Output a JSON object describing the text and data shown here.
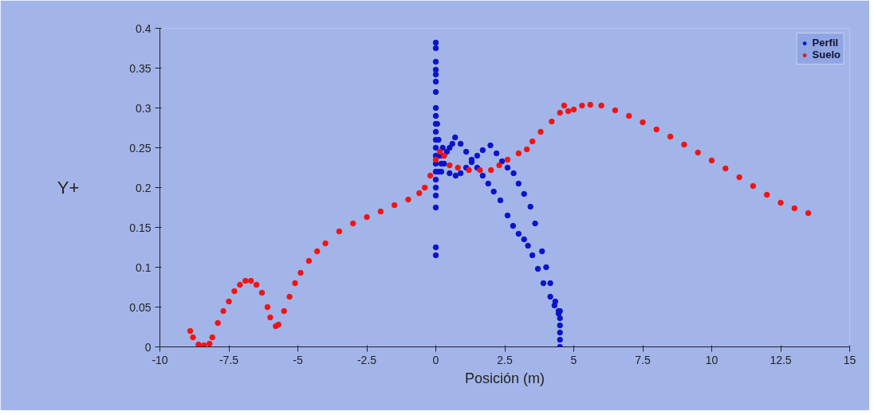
{
  "chart_data": {
    "type": "scatter",
    "xlabel": "Posición (m)",
    "ylabel": "Y+",
    "xlim": [
      -10,
      15
    ],
    "xticks": [
      -10,
      -7.5,
      -5,
      -2.5,
      0,
      2.5,
      5,
      7.5,
      10,
      12.5,
      15
    ],
    "ylim": [
      0,
      0.4
    ],
    "yticks": [
      0,
      0.05,
      0.1,
      0.15,
      0.2,
      0.25,
      0.3,
      0.35,
      0.4
    ],
    "grid": false,
    "legend": "top right",
    "marker": "circle",
    "series": [
      {
        "name": "Perfil",
        "color": "#0a14c8",
        "x": [
          0,
          0,
          0,
          0,
          0,
          0,
          0,
          0,
          0,
          0,
          0,
          0,
          0,
          0,
          0,
          0,
          0,
          0,
          0,
          0,
          0,
          0,
          0.05,
          0.1,
          0.15,
          0.2,
          0.25,
          0.3,
          0.1,
          0.2,
          0.3,
          0.4,
          0.5,
          0.6,
          0.7,
          0.9,
          1.1,
          1.3,
          1.5,
          1.7,
          1.9,
          2.1,
          2.34,
          2.6,
          2.8,
          3.0,
          3.2,
          3.34,
          3.5,
          3.7,
          3.9,
          4.15,
          4.3,
          4.45,
          0.5,
          0.72,
          0.9,
          1.1,
          1.3,
          1.5,
          1.7,
          1.98,
          2.2,
          2.4,
          2.6,
          2.82,
          3.0,
          3.2,
          3.43,
          3.6,
          3.85,
          4.0,
          4.15,
          4.33,
          4.45,
          4.5,
          4.5,
          4.5,
          4.5,
          4.5,
          4.5
        ],
        "values": [
          0.382,
          0.375,
          0.358,
          0.348,
          0.342,
          0.333,
          0.32,
          0.3,
          0.29,
          0.28,
          0.27,
          0.26,
          0.25,
          0.24,
          0.23,
          0.22,
          0.21,
          0.2,
          0.19,
          0.175,
          0.125,
          0.115,
          0.28,
          0.26,
          0.24,
          0.22,
          0.25,
          0.23,
          0.22,
          0.23,
          0.24,
          0.245,
          0.25,
          0.255,
          0.263,
          0.255,
          0.245,
          0.235,
          0.225,
          0.215,
          0.205,
          0.195,
          0.184,
          0.165,
          0.152,
          0.142,
          0.135,
          0.127,
          0.115,
          0.098,
          0.08,
          0.063,
          0.052,
          0.042,
          0.218,
          0.215,
          0.218,
          0.225,
          0.232,
          0.24,
          0.247,
          0.253,
          0.243,
          0.233,
          0.225,
          0.218,
          0.205,
          0.192,
          0.176,
          0.155,
          0.12,
          0.1,
          0.08,
          0.057,
          0.045,
          0.045,
          0.036,
          0.027,
          0.018,
          0.009,
          0
        ]
      },
      {
        "name": "Suelo",
        "color": "#f01414",
        "x": [
          -8.9,
          -8.8,
          -8.6,
          -8.4,
          -8.2,
          -8.1,
          -7.9,
          -7.7,
          -7.5,
          -7.3,
          -7.1,
          -6.9,
          -6.7,
          -6.5,
          -6.3,
          -6.1,
          -6.0,
          -5.8,
          -5.7,
          -5.5,
          -5.3,
          -5.1,
          -4.9,
          -4.6,
          -4.3,
          -4.0,
          -3.5,
          -3.0,
          -2.5,
          -2.0,
          -1.5,
          -1.0,
          -0.6,
          -0.4,
          -0.2,
          0.0,
          0.15,
          0.3,
          0.5,
          0.8,
          1.2,
          1.6,
          2.0,
          2.3,
          2.6,
          3.0,
          3.3,
          3.5,
          3.8,
          4.2,
          4.5,
          4.65,
          4.8,
          5.0,
          5.3,
          5.6,
          6.0,
          6.5,
          7.0,
          7.5,
          8.0,
          8.5,
          9.0,
          9.5,
          10.0,
          10.5,
          11.0,
          11.5,
          12.0,
          12.5,
          13.0,
          13.5
        ],
        "values": [
          0.02,
          0.012,
          0.003,
          0.002,
          0.004,
          0.012,
          0.03,
          0.045,
          0.057,
          0.07,
          0.078,
          0.083,
          0.083,
          0.078,
          0.068,
          0.05,
          0.037,
          0.026,
          0.028,
          0.045,
          0.063,
          0.08,
          0.093,
          0.108,
          0.12,
          0.13,
          0.145,
          0.155,
          0.163,
          0.17,
          0.178,
          0.185,
          0.193,
          0.2,
          0.215,
          0.235,
          0.245,
          0.24,
          0.228,
          0.225,
          0.222,
          0.222,
          0.222,
          0.228,
          0.235,
          0.243,
          0.248,
          0.258,
          0.27,
          0.283,
          0.294,
          0.303,
          0.296,
          0.298,
          0.303,
          0.304,
          0.303,
          0.297,
          0.29,
          0.282,
          0.273,
          0.264,
          0.254,
          0.244,
          0.234,
          0.224,
          0.213,
          0.202,
          0.191,
          0.181,
          0.174,
          0.168
        ]
      }
    ]
  }
}
